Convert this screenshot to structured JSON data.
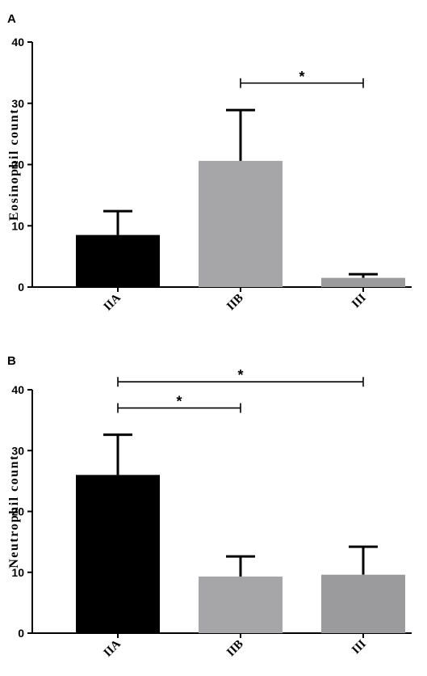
{
  "chart_data": [
    {
      "panel": "A",
      "type": "bar",
      "ylabel": "Eosinophil count",
      "ylim": [
        0,
        40
      ],
      "yticks": [
        "0",
        "10",
        "20",
        "30",
        "40"
      ],
      "categories": [
        "IIA",
        "IIB",
        "III"
      ],
      "values": [
        8.5,
        20.6,
        1.5
      ],
      "errors": [
        3.9,
        8.3,
        0.6
      ],
      "colors": [
        "#000000",
        "#a6a6a8",
        "#9b9b9d"
      ],
      "significance": [
        {
          "from": 1,
          "to": 2,
          "label": "*",
          "y": 33.3
        }
      ]
    },
    {
      "panel": "B",
      "type": "bar",
      "ylabel": "Neutrophil count",
      "ylim": [
        0,
        40
      ],
      "yticks": [
        "0",
        "10",
        "20",
        "30",
        "40"
      ],
      "categories": [
        "IIA",
        "IIB",
        "III"
      ],
      "values": [
        26.0,
        9.3,
        9.6
      ],
      "errors": [
        6.6,
        3.3,
        4.6
      ],
      "colors": [
        "#000000",
        "#a6a6a8",
        "#9b9b9d"
      ],
      "significance": [
        {
          "from": 0,
          "to": 1,
          "label": "*",
          "y": 37.0
        },
        {
          "from": 0,
          "to": 2,
          "label": "*",
          "y": 41.3
        }
      ]
    }
  ]
}
